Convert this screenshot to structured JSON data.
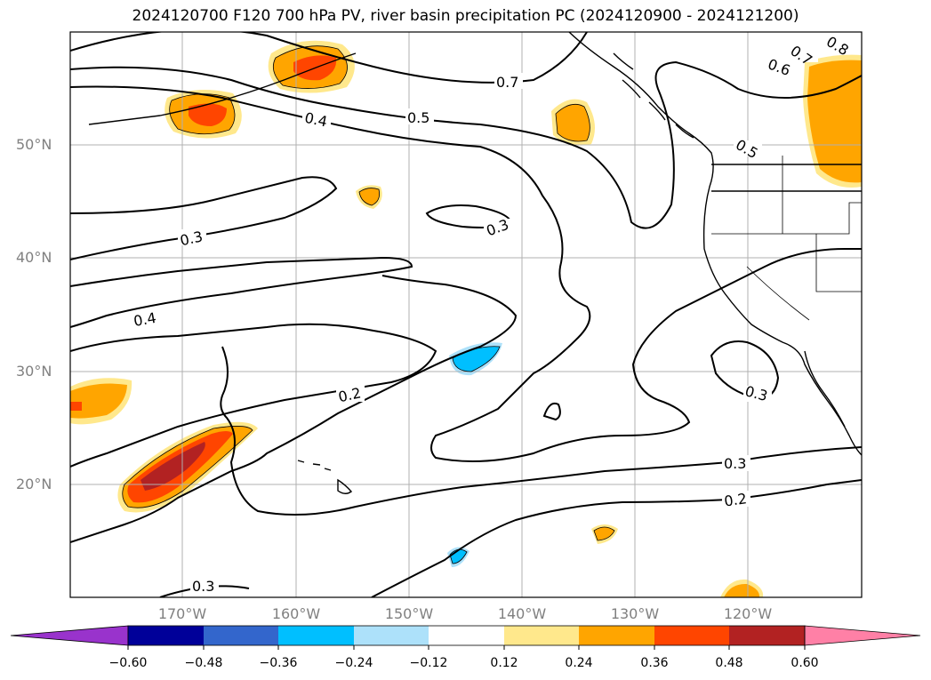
{
  "title": "2024120700 F120 700 hPa PV, river basin precipitation PC (2024120900 - 2024121200)",
  "lat_labels": [
    "50°N",
    "40°N",
    "30°N",
    "20°N"
  ],
  "lon_labels": [
    "170°W",
    "160°W",
    "150°W",
    "140°W",
    "130°W",
    "120°W"
  ],
  "contour_labels": [
    "0.8",
    "0.7",
    "0.6",
    "0.7",
    "0.5",
    "0.4",
    "0.5",
    "0.3",
    "0.3",
    "0.4",
    "0.2",
    "0.3",
    "0.3",
    "0.2",
    "0.3"
  ],
  "colorbar": {
    "ticks": [
      "−0.60",
      "−0.48",
      "−0.36",
      "−0.24",
      "−0.12",
      "0.12",
      "0.24",
      "0.36",
      "0.48",
      "0.60"
    ],
    "colors": [
      "#9933cc",
      "#000099",
      "#3366cc",
      "#00bfff",
      "#ade1fa",
      "#ffffff",
      "#ffe88c",
      "#ffa500",
      "#ff4500",
      "#b22222",
      "#ff80a6"
    ]
  },
  "chart_data": {
    "type": "map",
    "title": "2024120700 F120 700 hPa PV, river basin precipitation PC (2024120900 - 2024121200)",
    "projection": "PlateCarree",
    "lon_range": [
      -180,
      -110
    ],
    "lat_range": [
      10,
      60
    ],
    "contour_levels": [
      0.2,
      0.3,
      0.4,
      0.5,
      0.6,
      0.7,
      0.8
    ],
    "fill_levels": [
      -0.6,
      -0.48,
      -0.36,
      -0.24,
      -0.12,
      0.12,
      0.24,
      0.36,
      0.48,
      0.6
    ]
  }
}
